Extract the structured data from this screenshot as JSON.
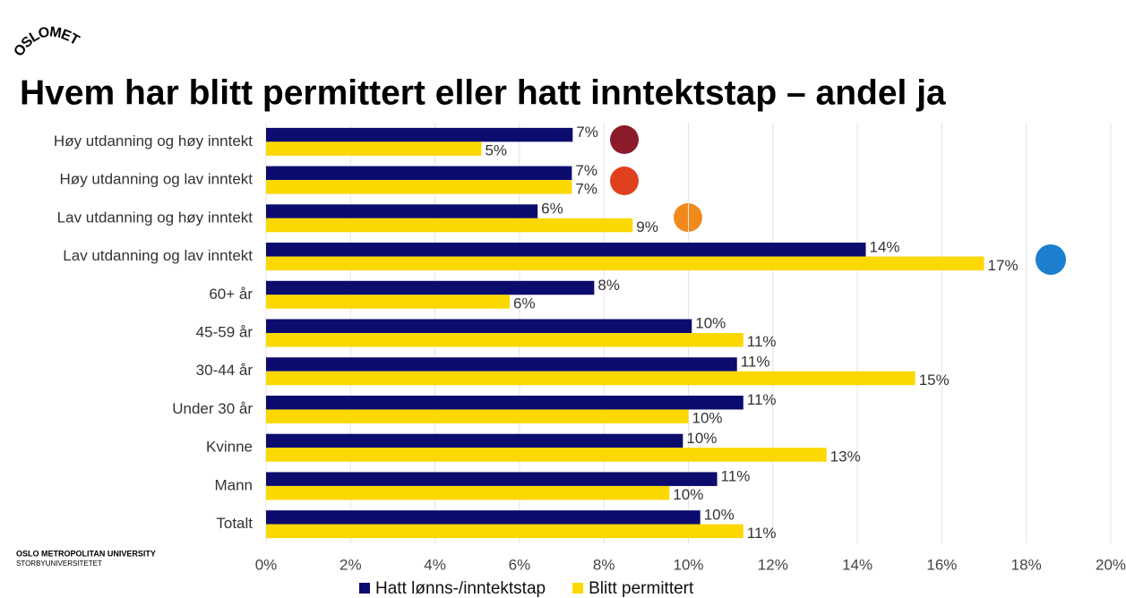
{
  "logo": "OSLOMET",
  "footer": {
    "university": "OSLO METROPOLITAN UNIVERSITY",
    "subtitle": "STORBYUNIVERSITETET"
  },
  "chart_data": {
    "type": "hbar",
    "title": "Hvem har blitt permittert eller hatt inntektstap – andel ja",
    "categories": [
      "Høy utdanning og høy inntekt",
      "Høy utdanning og lav inntekt",
      "Lav utdanning og høy inntekt",
      "Lav utdanning og lav inntekt",
      "60+ år",
      "45-59 år",
      "30-44 år",
      "Under 30 år",
      "Kvinne",
      "Mann",
      "Totalt"
    ],
    "series": [
      {
        "name": "Hatt lønns-/inntektstap",
        "color": "#0c0c6e",
        "values": [
          7.26,
          7.24,
          6.43,
          14.2,
          7.77,
          10.08,
          11.15,
          11.3,
          9.87,
          10.68,
          10.28
        ],
        "value_labels": [
          "7%",
          "7%",
          "6%",
          "14%",
          "8%",
          "10%",
          "11%",
          "11%",
          "10%",
          "11%",
          "10%"
        ]
      },
      {
        "name": "Blitt permittert",
        "color": "#fbd800",
        "values": [
          5.1,
          7.24,
          8.68,
          17.0,
          5.77,
          11.3,
          15.37,
          10.0,
          13.27,
          9.55,
          11.3
        ],
        "value_labels": [
          "5%",
          "7%",
          "9%",
          "17%",
          "6%",
          "11%",
          "15%",
          "10%",
          "13%",
          "10%",
          "11%"
        ]
      }
    ],
    "xlim": [
      0,
      20
    ],
    "xticks": [
      {
        "value": 0,
        "label": "0%"
      },
      {
        "value": 2,
        "label": "2%"
      },
      {
        "value": 4,
        "label": "4%"
      },
      {
        "value": 6,
        "label": "6%"
      },
      {
        "value": 8,
        "label": "8%"
      },
      {
        "value": 10,
        "label": "10%"
      },
      {
        "value": 12,
        "label": "12%"
      },
      {
        "value": 14,
        "label": "14%"
      },
      {
        "value": 16,
        "label": "16%"
      },
      {
        "value": 18,
        "label": "18%"
      },
      {
        "value": 20,
        "label": "20%"
      }
    ],
    "grid": true,
    "legend": "bottom"
  }
}
